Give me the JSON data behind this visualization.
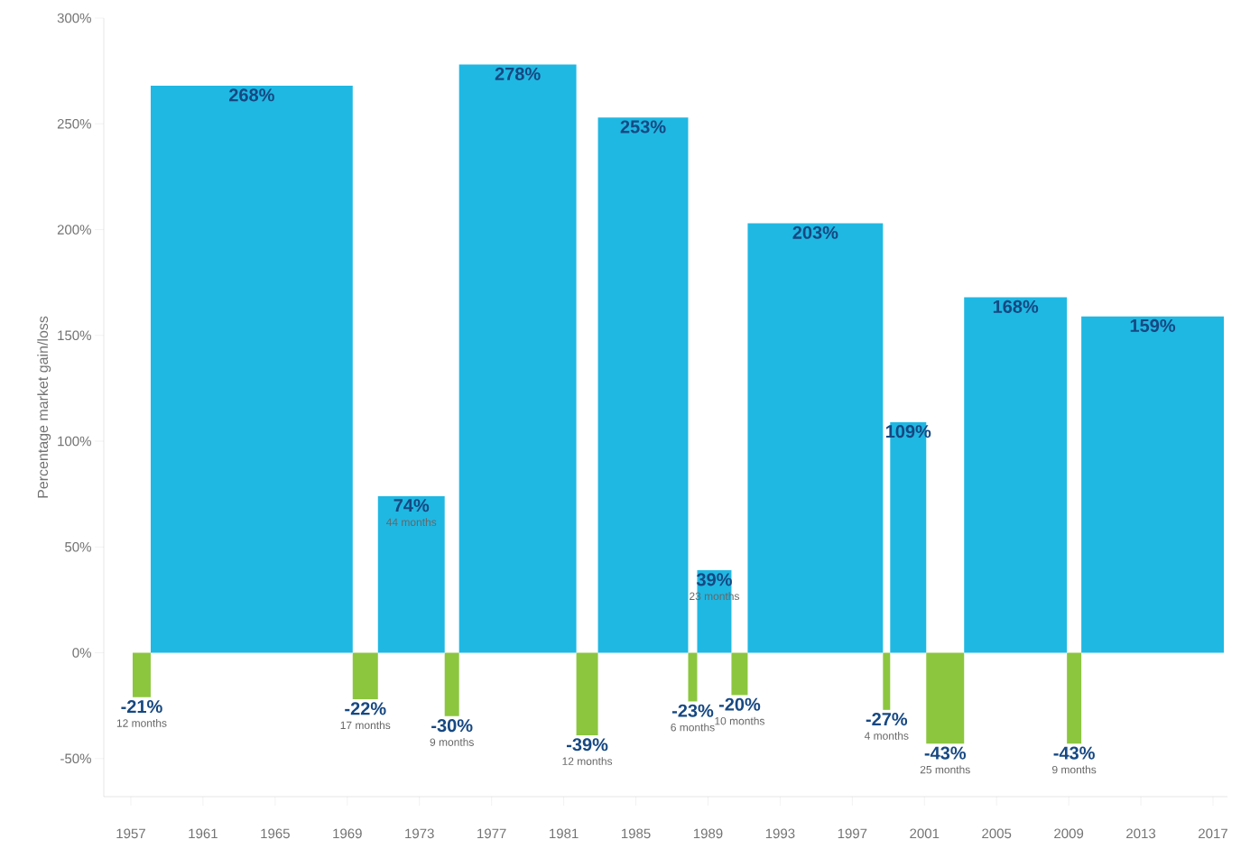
{
  "chart_data": {
    "type": "histogram",
    "ylabel": "Percentage market gain/loss",
    "bins": [
      1957.1,
      1958.1,
      1969.3,
      1970.7,
      1974.4,
      1975.2,
      1981.7,
      1982.9,
      1987.9,
      1988.4,
      1990.3,
      1991.2,
      1998.7,
      1999.1,
      2001.1,
      2003.2,
      2008.9,
      2009.7,
      2017.6
    ],
    "values": [
      -21,
      268,
      -22,
      74,
      -30,
      278,
      -39,
      253,
      -23,
      39,
      -20,
      203,
      -27,
      109,
      -43,
      168,
      -43,
      159
    ],
    "colors": [
      "#8cc63f",
      "#1fb8e3",
      "#8cc63f",
      "#1fb8e3",
      "#8cc63f",
      "#1fb8e3",
      "#8cc63f",
      "#1fb8e3",
      "#8cc63f",
      "#1fb8e3",
      "#8cc63f",
      "#1fb8e3",
      "#8cc63f",
      "#1fb8e3",
      "#8cc63f",
      "#1fb8e3",
      "#8cc63f",
      "#1fb8e3"
    ],
    "value_labels": [
      "-21%",
      "268%",
      "-22%",
      "74%",
      "-30%",
      "278%",
      "-39%",
      "253%",
      "-23%",
      "39%",
      "-20%",
      "203%",
      "-27%",
      "109%",
      "-43%",
      "168%",
      "-43%",
      "159%"
    ],
    "annotations": [
      {
        "text": "12 months",
        "x": 1957.6,
        "y": -21
      },
      {
        "text": "17 months",
        "x": 1970.0,
        "y": -22
      },
      {
        "text": "44 months",
        "x": 1972.55,
        "y": 74
      },
      {
        "text": "9 months",
        "x": 1974.8,
        "y": -30
      },
      {
        "text": "12 months",
        "x": 1982.3,
        "y": -39
      },
      {
        "text": "6 months",
        "x": 1988.15,
        "y": -23
      },
      {
        "text": "23 months",
        "x": 1989.35,
        "y": 39
      },
      {
        "text": "10 months",
        "x": 1990.75,
        "y": -20
      },
      {
        "text": "4 months",
        "x": 1998.9,
        "y": -27
      },
      {
        "text": "25 months",
        "x": 2002.15,
        "y": -43
      },
      {
        "text": "9 months",
        "x": 2009.3,
        "y": -43
      }
    ],
    "xlim": [
      1955.5,
      2017.8
    ],
    "xticks": [
      1957,
      1961,
      1965,
      1969,
      1973,
      1977,
      1981,
      1985,
      1989,
      1993,
      1997,
      2001,
      2005,
      2009,
      2013,
      2017
    ],
    "ylim": [
      -68,
      300
    ],
    "yticks": [
      {
        "value": -50,
        "label": "-50%"
      },
      {
        "value": 0,
        "label": "0%"
      },
      {
        "value": 50,
        "label": "50%"
      },
      {
        "value": 100,
        "label": "100%"
      },
      {
        "value": 150,
        "label": "150%"
      },
      {
        "value": 200,
        "label": "200%"
      },
      {
        "value": 250,
        "label": "250%"
      },
      {
        "value": 300,
        "label": "300%"
      }
    ],
    "grid": false
  }
}
